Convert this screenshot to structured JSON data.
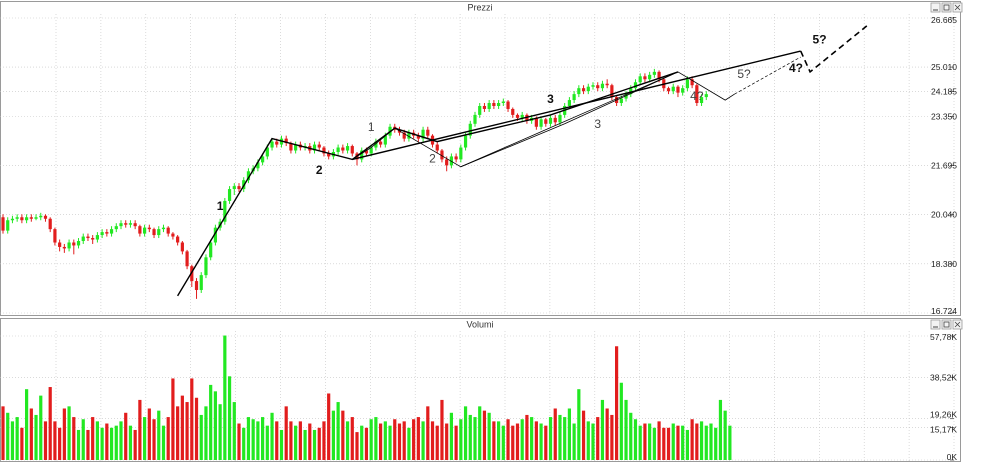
{
  "panels": {
    "price_title": "Prezzi",
    "volume_title": "Volumi"
  },
  "colors": {
    "up": "#22e822",
    "down": "#e21d1d",
    "grid": "#c4c4c4",
    "frame": "#9a9a9a",
    "line": "#000000"
  },
  "chart_data": [
    {
      "type": "candlestick",
      "title": "Prezzi",
      "ylim": [
        16.724,
        26.665
      ],
      "y_ticks": [
        "26.665",
        "25.010",
        "24.185",
        "23.350",
        "21.695",
        "20.040",
        "18.380",
        "16.724"
      ],
      "grid": true,
      "candles": [
        [
          19.95,
          19.5,
          20.05,
          19.4
        ],
        [
          19.5,
          19.85,
          19.95,
          19.4
        ],
        [
          19.85,
          19.9,
          20.0,
          19.75
        ],
        [
          19.9,
          19.95,
          20.05,
          19.8
        ],
        [
          19.95,
          19.85,
          20.05,
          19.75
        ],
        [
          19.85,
          19.95,
          20.05,
          19.75
        ],
        [
          19.95,
          19.9,
          20.05,
          19.8
        ],
        [
          19.9,
          19.95,
          20.05,
          19.85
        ],
        [
          19.95,
          20.0,
          20.1,
          19.85
        ],
        [
          20.0,
          19.9,
          20.05,
          19.8
        ],
        [
          19.9,
          19.55,
          19.95,
          19.45
        ],
        [
          19.55,
          19.1,
          19.6,
          19.0
        ],
        [
          19.1,
          18.95,
          19.2,
          18.8
        ],
        [
          18.95,
          18.9,
          19.05,
          18.75
        ],
        [
          18.9,
          19.1,
          19.2,
          18.8
        ],
        [
          19.1,
          19.0,
          19.2,
          18.7
        ],
        [
          19.0,
          19.15,
          19.25,
          18.9
        ],
        [
          19.15,
          19.3,
          19.4,
          19.05
        ],
        [
          19.3,
          19.25,
          19.4,
          19.15
        ],
        [
          19.25,
          19.2,
          19.35,
          19.05
        ],
        [
          19.2,
          19.35,
          19.45,
          19.1
        ],
        [
          19.35,
          19.45,
          19.55,
          19.25
        ],
        [
          19.45,
          19.4,
          19.55,
          19.3
        ],
        [
          19.4,
          19.55,
          19.65,
          19.3
        ],
        [
          19.55,
          19.65,
          19.75,
          19.45
        ],
        [
          19.65,
          19.75,
          19.85,
          19.55
        ],
        [
          19.75,
          19.7,
          19.85,
          19.6
        ],
        [
          19.7,
          19.75,
          19.85,
          19.6
        ],
        [
          19.75,
          19.65,
          19.85,
          19.55
        ],
        [
          19.65,
          19.4,
          19.7,
          19.3
        ],
        [
          19.4,
          19.6,
          19.7,
          19.3
        ],
        [
          19.6,
          19.55,
          19.7,
          19.45
        ],
        [
          19.55,
          19.35,
          19.6,
          19.25
        ],
        [
          19.35,
          19.55,
          19.65,
          19.25
        ],
        [
          19.55,
          19.6,
          19.7,
          19.45
        ],
        [
          19.6,
          19.4,
          19.65,
          19.3
        ],
        [
          19.4,
          19.3,
          19.45,
          19.2
        ],
        [
          19.3,
          19.1,
          19.35,
          19.0
        ],
        [
          19.1,
          18.8,
          19.15,
          18.7
        ],
        [
          18.8,
          18.3,
          18.85,
          18.2
        ],
        [
          18.3,
          17.8,
          18.35,
          17.6
        ],
        [
          17.8,
          17.5,
          17.9,
          17.2
        ],
        [
          17.5,
          18.0,
          18.1,
          17.4
        ],
        [
          18.0,
          18.6,
          18.7,
          17.9
        ],
        [
          18.6,
          19.1,
          19.2,
          18.5
        ],
        [
          19.1,
          19.6,
          19.7,
          19.0
        ],
        [
          19.6,
          19.8,
          19.9,
          19.5
        ],
        [
          19.8,
          20.5,
          20.6,
          19.7
        ],
        [
          20.5,
          20.9,
          21.0,
          20.4
        ],
        [
          20.9,
          21.0,
          21.1,
          20.7
        ],
        [
          21.0,
          20.9,
          21.1,
          20.8
        ],
        [
          20.9,
          21.2,
          21.3,
          20.8
        ],
        [
          21.2,
          21.5,
          21.6,
          21.1
        ],
        [
          21.5,
          21.6,
          21.7,
          21.4
        ],
        [
          21.6,
          21.8,
          21.9,
          21.5
        ],
        [
          21.8,
          22.0,
          22.1,
          21.7
        ],
        [
          22.0,
          22.3,
          22.4,
          21.9
        ],
        [
          22.3,
          22.5,
          22.6,
          22.2
        ],
        [
          22.5,
          22.4,
          22.6,
          22.3
        ],
        [
          22.4,
          22.6,
          22.7,
          22.3
        ],
        [
          22.6,
          22.45,
          22.7,
          22.35
        ],
        [
          22.45,
          22.2,
          22.5,
          22.1
        ],
        [
          22.2,
          22.4,
          22.5,
          22.1
        ],
        [
          22.4,
          22.3,
          22.5,
          22.2
        ],
        [
          22.3,
          22.35,
          22.45,
          22.2
        ],
        [
          22.35,
          22.2,
          22.45,
          22.1
        ],
        [
          22.2,
          22.4,
          22.5,
          22.1
        ],
        [
          22.4,
          22.3,
          22.5,
          22.2
        ],
        [
          22.3,
          22.1,
          22.35,
          22.0
        ],
        [
          22.1,
          22.0,
          22.2,
          21.9
        ],
        [
          22.0,
          22.15,
          22.25,
          21.9
        ],
        [
          22.15,
          22.3,
          22.4,
          22.05
        ],
        [
          22.3,
          22.2,
          22.4,
          22.1
        ],
        [
          22.2,
          22.35,
          22.45,
          22.1
        ],
        [
          22.35,
          22.1,
          22.4,
          22.0
        ],
        [
          22.1,
          21.9,
          22.15,
          21.7
        ],
        [
          21.9,
          22.2,
          22.3,
          21.8
        ],
        [
          22.2,
          22.1,
          22.3,
          22.0
        ],
        [
          22.1,
          22.3,
          22.4,
          22.0
        ],
        [
          22.3,
          22.5,
          22.6,
          22.2
        ],
        [
          22.5,
          22.4,
          22.6,
          22.3
        ],
        [
          22.4,
          22.7,
          22.8,
          22.3
        ],
        [
          22.7,
          23.0,
          23.1,
          22.6
        ],
        [
          23.0,
          22.9,
          23.1,
          22.8
        ],
        [
          22.9,
          22.8,
          23.0,
          22.7
        ],
        [
          22.8,
          22.6,
          22.9,
          22.5
        ],
        [
          22.6,
          22.8,
          22.9,
          22.5
        ],
        [
          22.8,
          22.7,
          22.9,
          22.6
        ],
        [
          22.7,
          22.6,
          22.8,
          22.5
        ],
        [
          22.6,
          22.9,
          23.0,
          22.5
        ],
        [
          22.9,
          22.7,
          23.0,
          22.6
        ],
        [
          22.7,
          22.4,
          22.75,
          22.3
        ],
        [
          22.4,
          22.2,
          22.5,
          22.1
        ],
        [
          22.2,
          21.9,
          22.25,
          21.8
        ],
        [
          21.9,
          21.7,
          22.0,
          21.5
        ],
        [
          21.7,
          22.0,
          22.1,
          21.6
        ],
        [
          22.0,
          21.9,
          22.1,
          21.8
        ],
        [
          21.9,
          22.3,
          22.4,
          21.8
        ],
        [
          22.3,
          22.7,
          22.8,
          22.2
        ],
        [
          22.7,
          23.1,
          23.2,
          22.6
        ],
        [
          23.1,
          23.4,
          23.5,
          23.0
        ],
        [
          23.4,
          23.7,
          23.8,
          23.3
        ],
        [
          23.7,
          23.6,
          23.8,
          23.5
        ],
        [
          23.6,
          23.8,
          23.9,
          23.5
        ],
        [
          23.8,
          23.7,
          23.9,
          23.6
        ],
        [
          23.7,
          23.8,
          23.9,
          23.6
        ],
        [
          23.8,
          23.85,
          23.95,
          23.7
        ],
        [
          23.85,
          23.6,
          23.9,
          23.5
        ],
        [
          23.6,
          23.4,
          23.65,
          23.3
        ],
        [
          23.4,
          23.3,
          23.45,
          23.2
        ],
        [
          23.3,
          23.4,
          23.5,
          23.2
        ],
        [
          23.4,
          23.2,
          23.45,
          23.1
        ],
        [
          23.2,
          23.3,
          23.4,
          23.1
        ],
        [
          23.3,
          23.0,
          23.35,
          22.9
        ],
        [
          23.0,
          23.25,
          23.35,
          22.9
        ],
        [
          23.25,
          23.1,
          23.3,
          23.0
        ],
        [
          23.1,
          23.3,
          23.4,
          23.0
        ],
        [
          23.3,
          23.15,
          23.4,
          23.05
        ],
        [
          23.15,
          23.4,
          23.5,
          23.05
        ],
        [
          23.4,
          23.7,
          23.8,
          23.3
        ],
        [
          23.7,
          23.9,
          24.0,
          23.6
        ],
        [
          23.9,
          24.1,
          24.2,
          23.8
        ],
        [
          24.1,
          24.3,
          24.4,
          24.0
        ],
        [
          24.3,
          24.2,
          24.4,
          24.1
        ],
        [
          24.2,
          24.35,
          24.45,
          24.1
        ],
        [
          24.35,
          24.4,
          24.5,
          24.25
        ],
        [
          24.4,
          24.3,
          24.5,
          24.2
        ],
        [
          24.3,
          24.45,
          24.55,
          24.2
        ],
        [
          24.45,
          24.4,
          24.6,
          24.3
        ],
        [
          24.4,
          24.0,
          24.45,
          23.9
        ],
        [
          24.0,
          23.8,
          24.05,
          23.7
        ],
        [
          23.8,
          23.95,
          24.05,
          23.7
        ],
        [
          23.95,
          24.1,
          24.2,
          23.85
        ],
        [
          24.1,
          24.3,
          24.4,
          24.0
        ],
        [
          24.3,
          24.5,
          24.6,
          24.2
        ],
        [
          24.5,
          24.7,
          24.8,
          24.4
        ],
        [
          24.7,
          24.6,
          24.8,
          24.5
        ],
        [
          24.6,
          24.75,
          24.85,
          24.5
        ],
        [
          24.75,
          24.85,
          24.95,
          24.65
        ],
        [
          24.85,
          24.6,
          24.9,
          24.5
        ],
        [
          24.6,
          24.3,
          24.65,
          24.2
        ],
        [
          24.3,
          24.2,
          24.35,
          24.1
        ],
        [
          24.2,
          24.35,
          24.45,
          24.1
        ],
        [
          24.35,
          24.15,
          24.4,
          24.0
        ],
        [
          24.15,
          24.3,
          24.4,
          24.05
        ],
        [
          24.3,
          24.6,
          24.7,
          24.2
        ],
        [
          24.6,
          24.4,
          24.7,
          24.3
        ],
        [
          24.4,
          23.8,
          24.45,
          23.7
        ],
        [
          23.8,
          24.0,
          24.1,
          23.7
        ],
        [
          24.0,
          24.1,
          24.2,
          23.9
        ]
      ],
      "annotations": [
        {
          "text": "1",
          "i": 46,
          "y": 20.2
        },
        {
          "text": "2",
          "i": 67,
          "y": 21.4
        },
        {
          "text": "1",
          "i": 78,
          "y": 22.85
        },
        {
          "text": "2",
          "i": 91,
          "y": 21.8
        },
        {
          "text": "3",
          "i": 116,
          "y": 23.8
        },
        {
          "text": "3",
          "i": 126,
          "y": 22.95
        },
        {
          "text": "4?",
          "i": 147,
          "y": 23.9
        },
        {
          "text": "5?",
          "i": 157,
          "y": 24.65
        },
        {
          "text": "5?",
          "i": 173,
          "y": 25.8
        },
        {
          "text": "4?",
          "i": 168,
          "y": 24.85
        }
      ],
      "trendlines": [
        {
          "style": "bold",
          "points": [
            [
              37,
              17.3
            ],
            [
              57,
              22.6
            ],
            [
              74,
              21.9
            ],
            [
              83,
              22.95
            ],
            [
              92,
              22.5
            ],
            [
              116,
              23.4
            ],
            [
              143,
              24.85
            ]
          ]
        },
        {
          "style": "bold",
          "points": [
            [
              74,
              21.9
            ],
            [
              169,
              25.55
            ]
          ]
        },
        {
          "style": "thin",
          "points": [
            [
              74,
              21.9
            ],
            [
              78,
              22.3
            ],
            [
              83,
              22.95
            ],
            [
              97,
              21.65
            ],
            [
              119,
              23.1
            ],
            [
              143,
              24.85
            ],
            [
              153,
              23.9
            ],
            [
              155,
              24.1
            ]
          ]
        },
        {
          "style": "thin",
          "points": [
            [
              97,
              21.65
            ],
            [
              143,
              24.85
            ]
          ]
        },
        {
          "style": "dashed-thin",
          "points": [
            [
              155,
              24.1
            ],
            [
              169,
              25.35
            ]
          ]
        },
        {
          "style": "dashed-bold",
          "points": [
            [
              169,
              25.55
            ],
            [
              171,
              24.85
            ],
            [
              183,
              26.4
            ]
          ]
        }
      ]
    },
    {
      "type": "bar",
      "title": "Volumi",
      "ylim": [
        0,
        57.78
      ],
      "y_ticks": [
        "57,78K",
        "38,52K",
        "19,26K",
        "15,17K",
        "0K"
      ],
      "grid": true,
      "volumes": [
        25,
        22,
        18,
        20,
        15,
        33,
        24,
        21,
        30,
        18,
        34,
        18,
        15,
        24,
        25,
        20,
        14,
        19,
        14,
        20,
        18,
        15,
        17,
        15,
        16,
        18,
        22,
        16,
        14,
        28,
        20,
        24,
        19,
        23,
        16,
        20,
        38,
        25,
        30,
        27,
        38,
        29,
        21,
        25,
        35,
        32,
        26,
        58,
        39,
        27,
        17,
        15,
        20,
        19,
        18,
        20,
        16,
        22,
        18,
        14,
        25,
        18,
        16,
        18,
        14,
        17,
        14,
        15,
        18,
        31,
        23,
        27,
        23,
        18,
        20,
        13,
        16,
        15,
        19,
        20,
        17,
        18,
        16,
        19,
        17,
        18,
        15,
        19,
        20,
        18,
        25,
        18,
        16,
        28,
        17,
        22,
        16,
        19,
        25,
        21,
        20,
        25,
        23,
        22,
        18,
        18,
        16,
        19,
        16,
        17,
        19,
        21,
        20,
        18,
        17,
        16,
        20,
        24,
        21,
        20,
        24,
        17,
        33,
        23,
        18,
        17,
        20,
        28,
        24,
        21,
        53,
        36,
        28,
        22,
        19,
        16,
        17,
        17,
        15,
        18,
        15,
        15,
        17,
        16,
        16,
        14,
        19,
        17,
        18,
        16,
        17,
        15,
        28,
        23,
        16
      ]
    }
  ]
}
